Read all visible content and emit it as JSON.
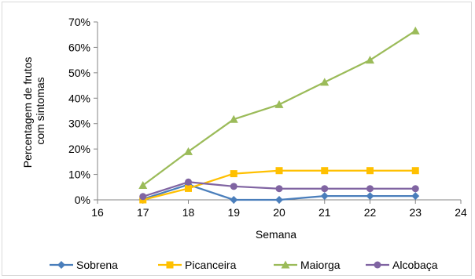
{
  "chart_data": {
    "type": "line",
    "xlabel": "Semana",
    "ylabel_lines": [
      "Percentagem de frutos",
      "com sintomas"
    ],
    "xlim": [
      16,
      24
    ],
    "ylim": [
      0,
      70
    ],
    "xticks": [
      16,
      17,
      18,
      19,
      20,
      21,
      22,
      23,
      24
    ],
    "xtick_labels": [
      "16",
      "17",
      "18",
      "19",
      "20",
      "21",
      "22",
      "23",
      "24"
    ],
    "yticks": [
      0,
      10,
      20,
      30,
      40,
      50,
      60,
      70
    ],
    "ytick_labels": [
      "0%",
      "10%",
      "20%",
      "30%",
      "40%",
      "50%",
      "60%",
      "70%"
    ],
    "grid": false,
    "legend_position": "bottom",
    "series": [
      {
        "name": "Sobrena",
        "color": "#4a7ebb",
        "marker": "diamond",
        "x": [
          17,
          18,
          19,
          20,
          21,
          22,
          23
        ],
        "y": [
          0.3,
          6.0,
          0.0,
          0.0,
          1.5,
          1.5,
          1.5
        ]
      },
      {
        "name": "Picanceira",
        "color": "#ffc000",
        "marker": "square",
        "x": [
          17,
          18,
          19,
          20,
          21,
          22,
          23
        ],
        "y": [
          0.0,
          4.5,
          10.3,
          11.5,
          11.5,
          11.5,
          11.5
        ]
      },
      {
        "name": "Maiorga",
        "color": "#9bbb59",
        "marker": "triangle",
        "x": [
          17,
          18,
          19,
          20,
          21,
          22,
          23
        ],
        "y": [
          5.7,
          19.0,
          31.7,
          37.5,
          46.3,
          55.0,
          66.5
        ]
      },
      {
        "name": "Alcobaça",
        "color": "#8064a2",
        "marker": "circle",
        "x": [
          17,
          18,
          19,
          20,
          21,
          22,
          23
        ],
        "y": [
          1.3,
          7.0,
          5.3,
          4.4,
          4.4,
          4.4,
          4.4
        ]
      }
    ]
  }
}
